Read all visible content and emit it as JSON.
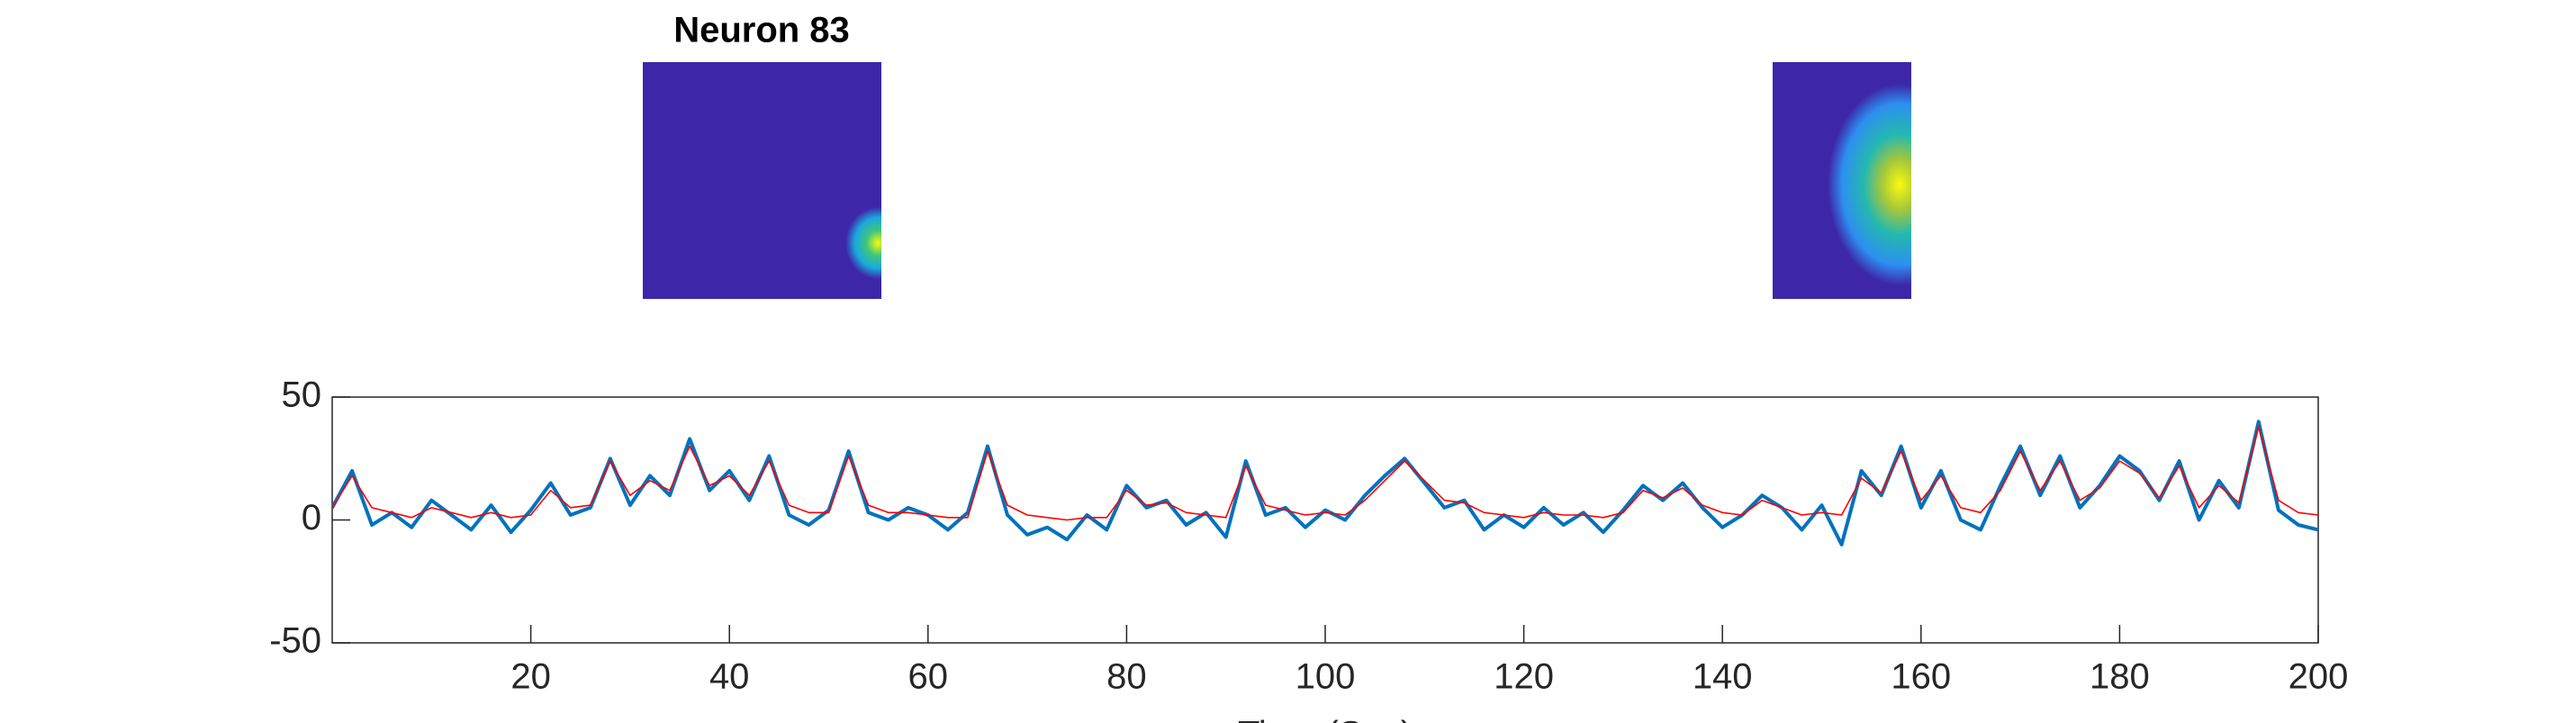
{
  "chart_data": {
    "type": "line",
    "title": "Neuron 83",
    "xlabel": "Time (Sec)",
    "xlim": [
      0,
      200
    ],
    "xticks": [
      20,
      40,
      60,
      80,
      100,
      120,
      140,
      160,
      180,
      200
    ],
    "ylim": [
      -50,
      50
    ],
    "yticks": [
      -50,
      0,
      50
    ],
    "grid": false,
    "x": [
      0,
      2,
      4,
      6,
      8,
      10,
      12,
      14,
      16,
      18,
      20,
      22,
      24,
      26,
      28,
      30,
      32,
      34,
      36,
      38,
      40,
      42,
      44,
      46,
      48,
      50,
      52,
      54,
      56,
      58,
      60,
      62,
      64,
      66,
      68,
      70,
      72,
      74,
      76,
      78,
      80,
      82,
      84,
      86,
      88,
      90,
      92,
      94,
      96,
      98,
      100,
      102,
      104,
      106,
      108,
      110,
      112,
      114,
      116,
      118,
      120,
      122,
      124,
      126,
      128,
      130,
      132,
      134,
      136,
      138,
      140,
      142,
      144,
      146,
      148,
      150,
      152,
      154,
      156,
      158,
      160,
      162,
      164,
      166,
      168,
      170,
      172,
      174,
      176,
      178,
      180,
      182,
      184,
      186,
      188,
      190,
      192,
      194,
      196,
      198,
      200
    ],
    "series": [
      {
        "color": "#0072bd",
        "width": 4,
        "values": [
          5,
          20,
          -2,
          3,
          -3,
          8,
          2,
          -4,
          6,
          -5,
          4,
          15,
          2,
          5,
          25,
          6,
          18,
          10,
          33,
          12,
          20,
          8,
          26,
          2,
          -2,
          4,
          28,
          3,
          0,
          5,
          2,
          -4,
          3,
          30,
          2,
          -6,
          -3,
          -8,
          2,
          -4,
          14,
          5,
          8,
          -2,
          3,
          -7,
          24,
          2,
          5,
          -3,
          4,
          0,
          10,
          18,
          25,
          15,
          5,
          8,
          -4,
          2,
          -3,
          5,
          -2,
          3,
          -5,
          4,
          14,
          8,
          15,
          5,
          -3,
          2,
          10,
          5,
          -4,
          6,
          -10,
          20,
          10,
          30,
          5,
          20,
          0,
          -4,
          14,
          30,
          10,
          26,
          5,
          14,
          26,
          20,
          8,
          24,
          0,
          16,
          5,
          40,
          4,
          -2,
          -4
        ]
      },
      {
        "color": "#ff0000",
        "width": 1.6,
        "values": [
          5,
          18,
          5,
          3,
          1,
          5,
          3,
          1,
          3,
          1,
          2,
          12,
          5,
          6,
          24,
          10,
          16,
          12,
          30,
          14,
          18,
          10,
          24,
          6,
          3,
          3,
          26,
          6,
          3,
          3,
          2,
          1,
          1,
          28,
          6,
          2,
          1,
          0,
          1,
          1,
          12,
          6,
          7,
          3,
          2,
          1,
          22,
          6,
          4,
          2,
          3,
          2,
          8,
          16,
          24,
          16,
          8,
          7,
          3,
          2,
          1,
          3,
          2,
          2,
          1,
          3,
          12,
          9,
          13,
          6,
          3,
          2,
          8,
          5,
          2,
          3,
          2,
          17,
          11,
          28,
          8,
          18,
          5,
          3,
          12,
          28,
          12,
          24,
          8,
          13,
          24,
          19,
          9,
          22,
          5,
          14,
          7,
          38,
          8,
          3,
          2
        ]
      }
    ]
  }
}
